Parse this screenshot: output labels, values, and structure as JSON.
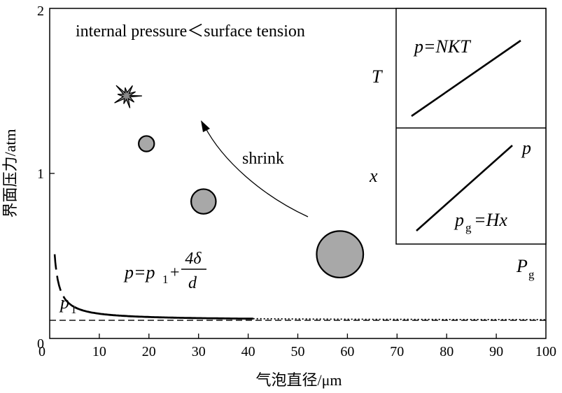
{
  "chart_data": {
    "type": "line",
    "title": "internal pressure < surface tension",
    "xlabel": "气泡直径/μm",
    "ylabel": "界面压力/atm",
    "xlim": [
      0,
      100
    ],
    "ylim": [
      0,
      2
    ],
    "x_ticks": [
      "0",
      "10",
      "20",
      "30",
      "40",
      "50",
      "60",
      "70",
      "80",
      "90",
      "100"
    ],
    "y_ticks": [
      "0",
      "1",
      "2"
    ],
    "p1": 0.11,
    "delta_term": 0.4,
    "series": [
      {
        "name": "p=p1+4δ/d",
        "x_range": [
          1,
          41
        ],
        "solid_from": 5,
        "dotted_range": [
          41,
          100
        ]
      },
      {
        "name": "p1",
        "constant": 0.11,
        "style": "dashed"
      }
    ],
    "main_labels": {
      "title_text": "internal pressure＜surface tension",
      "shrink": "shrink",
      "formula_left": "p=p",
      "formula_sub": "1",
      "formula_plus": "+",
      "formula_num": "4δ",
      "formula_den": "d",
      "p1_label": "p",
      "p1_sub": "1",
      "pg_label": "P",
      "pg_sub": "g"
    },
    "bubbles": [
      {
        "diameter": 58.5,
        "pressure": 0.51
      },
      {
        "diameter": 31,
        "pressure": 0.83
      },
      {
        "diameter": 19.5,
        "pressure": 1.18
      }
    ],
    "burst": {
      "diameter": 15.5,
      "pressure": 1.47
    },
    "inset_top": {
      "formula": "p=NKT",
      "axis_label": "T"
    },
    "inset_bottom": {
      "formula_left": "p",
      "formula_sub": "g",
      "formula_right": "=Hx",
      "axis_label": "x",
      "p_label": "p"
    }
  }
}
